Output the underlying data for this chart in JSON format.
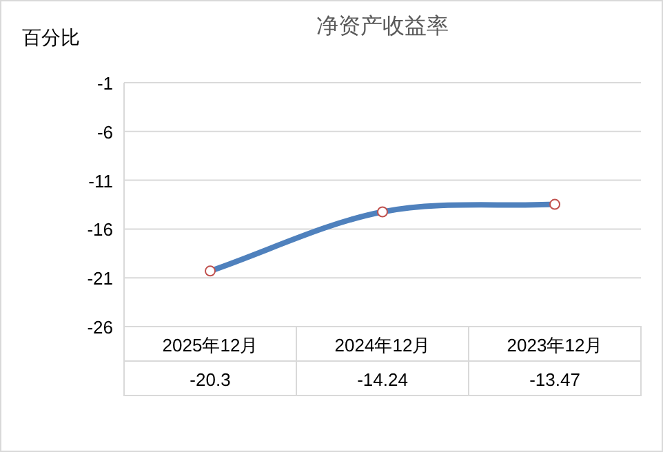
{
  "chart_data": {
    "type": "line",
    "title": "净资产收益率",
    "ylabel": "百分比",
    "categories": [
      "2025年12月",
      "2024年12月",
      "2023年12月"
    ],
    "series": [
      {
        "color": "#4f81bd",
        "values": [
          -20.3,
          -14.24,
          -13.47
        ]
      }
    ],
    "ylim": [
      -26,
      -1
    ],
    "yticks": [
      -1,
      -6,
      -11,
      -16,
      -21,
      -26
    ],
    "grid": "y",
    "marker": "circle",
    "line_style": "solid",
    "data_labels": true
  }
}
